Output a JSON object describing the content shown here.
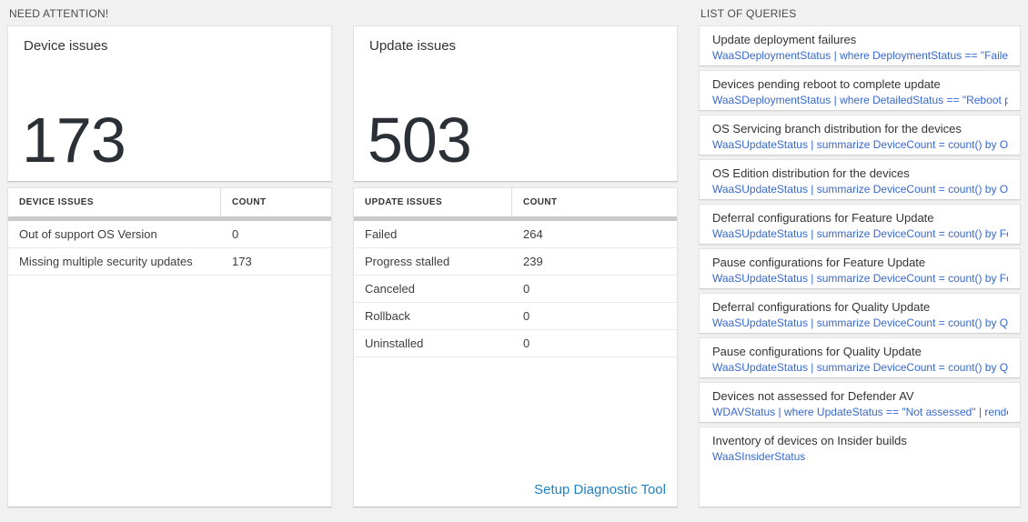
{
  "need_attention": {
    "section_title": "NEED ATTENTION!",
    "device_card": {
      "title": "Device issues",
      "count": "173"
    },
    "device_table": {
      "headers": [
        "DEVICE ISSUES",
        "COUNT"
      ],
      "rows": [
        {
          "label": "Out of support OS Version",
          "count": "0"
        },
        {
          "label": "Missing multiple security updates",
          "count": "173"
        }
      ]
    },
    "update_card": {
      "title": "Update issues",
      "count": "503"
    },
    "update_table": {
      "headers": [
        "UPDATE ISSUES",
        "COUNT"
      ],
      "rows": [
        {
          "label": "Failed",
          "count": "264"
        },
        {
          "label": "Progress stalled",
          "count": "239"
        },
        {
          "label": "Canceled",
          "count": "0"
        },
        {
          "label": "Rollback",
          "count": "0"
        },
        {
          "label": "Uninstalled",
          "count": "0"
        }
      ],
      "footer_link": "Setup Diagnostic Tool"
    }
  },
  "queries": {
    "section_title": "LIST OF QUERIES",
    "items": [
      {
        "title": "Update deployment failures",
        "query": "WaaSDeploymentStatus | where DeploymentStatus == \"Failed\" |..."
      },
      {
        "title": "Devices pending reboot to complete update",
        "query": "WaaSDeploymentStatus | where DetailedStatus == \"Reboot pend..."
      },
      {
        "title": "OS Servicing branch distribution for the devices",
        "query": "WaaSUpdateStatus | summarize DeviceCount = count() by OSSer..."
      },
      {
        "title": "OS Edition distribution for the devices",
        "query": "WaaSUpdateStatus | summarize DeviceCount = count() by OSEdit..."
      },
      {
        "title": "Deferral configurations for Feature Update",
        "query": "WaaSUpdateStatus | summarize DeviceCount = count() by Featur..."
      },
      {
        "title": "Pause configurations for Feature Update",
        "query": "WaaSUpdateStatus | summarize DeviceCount = count() by Featur..."
      },
      {
        "title": "Deferral configurations for Quality Update",
        "query": "WaaSUpdateStatus | summarize DeviceCount = count() by Qualit..."
      },
      {
        "title": "Pause configurations for Quality Update",
        "query": "WaaSUpdateStatus | summarize DeviceCount = count() by Qualit..."
      },
      {
        "title": "Devices not assessed for Defender AV",
        "query": "WDAVStatus | where UpdateStatus == \"Not assessed\" | render ta..."
      },
      {
        "title": "Inventory of devices on Insider builds",
        "query": "WaaSInsiderStatus"
      }
    ]
  },
  "colors": {
    "page_background": "#f1f1f1",
    "tile_background": "#ffffff",
    "query_link_blue": "#3668cf",
    "action_link_blue": "#1d83c4",
    "kpi_number": "#2b3036",
    "table_header_bar": "#c9c9c9"
  }
}
